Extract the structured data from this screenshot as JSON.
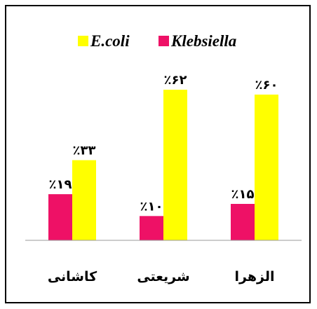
{
  "chart_data": {
    "type": "bar",
    "categories": [
      "الزهرا",
      "شریعتی",
      "کاشانی"
    ],
    "series": [
      {
        "name": "Klebsiella",
        "color": "#ee1166",
        "values": [
          15,
          10,
          19
        ],
        "labels": [
          "٪۱۵",
          "٪۱۰",
          "٪۱۹"
        ]
      },
      {
        "name": "E.coli",
        "color": "#ffff00",
        "values": [
          60,
          62,
          33
        ],
        "labels": [
          "٪۶۰",
          "٪۶۲",
          "٪۳۳"
        ]
      }
    ],
    "category_order": "right-to-left",
    "legend_position": "top",
    "ylim": [
      0,
      70
    ],
    "grid": false
  }
}
